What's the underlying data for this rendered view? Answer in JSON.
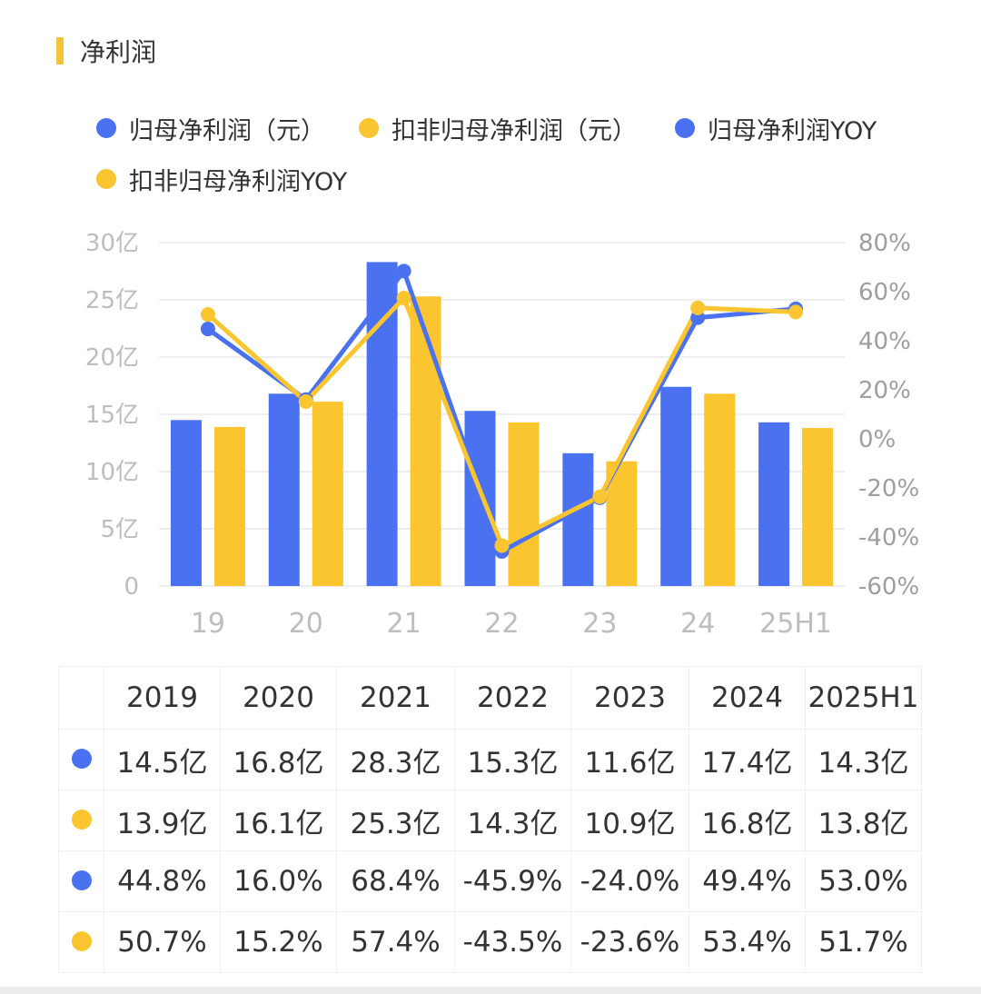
{
  "section": {
    "title": "净利润",
    "accent_color": "#F7C33A"
  },
  "colors": {
    "blue": "#4A72F0",
    "yellow": "#FAC52E",
    "grid": "#eeeeee"
  },
  "legend": [
    {
      "label": "归母净利润（元）",
      "color": "#4A72F0"
    },
    {
      "label": "扣非归母净利润（元）",
      "color": "#FAC52E"
    },
    {
      "label": "归母净利润YOY",
      "color": "#4A72F0"
    },
    {
      "label": "扣非归母净利润YOY",
      "color": "#FAC52E"
    }
  ],
  "chart_data": {
    "type": "bar",
    "categories": [
      "19",
      "20",
      "21",
      "22",
      "23",
      "24",
      "25H1"
    ],
    "y_left": {
      "ticks": [
        "0",
        "5亿",
        "10亿",
        "15亿",
        "20亿",
        "25亿",
        "30亿"
      ],
      "ylim": [
        0,
        30
      ],
      "unit": "亿"
    },
    "y_right": {
      "ticks": [
        "-60%",
        "-40%",
        "-20%",
        "0%",
        "20%",
        "40%",
        "60%",
        "80%"
      ],
      "ylim": [
        -60,
        80
      ],
      "unit": "%"
    },
    "grid": true,
    "legend_position": "top",
    "series": [
      {
        "name": "归母净利润（元）",
        "type": "bar",
        "axis": "left",
        "color": "#4A72F0",
        "values": [
          14.5,
          16.8,
          28.3,
          15.3,
          11.6,
          17.4,
          14.3
        ]
      },
      {
        "name": "扣非归母净利润（元）",
        "type": "bar",
        "axis": "left",
        "color": "#FAC52E",
        "values": [
          13.9,
          16.1,
          25.3,
          14.3,
          10.9,
          16.8,
          13.8
        ]
      },
      {
        "name": "归母净利润YOY",
        "type": "line",
        "axis": "right",
        "color": "#4A72F0",
        "values": [
          44.8,
          16.0,
          68.4,
          -45.9,
          -24.0,
          49.4,
          53.0
        ]
      },
      {
        "name": "扣非归母净利润YOY",
        "type": "line",
        "axis": "right",
        "color": "#FAC52E",
        "values": [
          50.7,
          15.2,
          57.4,
          -43.5,
          -23.6,
          53.4,
          51.7
        ]
      }
    ]
  },
  "table": {
    "headers": [
      "2019",
      "2020",
      "2021",
      "2022",
      "2023",
      "2024",
      "2025H1"
    ],
    "rows": [
      {
        "color": "#4A72F0",
        "cells": [
          "14.5亿",
          "16.8亿",
          "28.3亿",
          "15.3亿",
          "11.6亿",
          "17.4亿",
          "14.3亿"
        ]
      },
      {
        "color": "#FAC52E",
        "cells": [
          "13.9亿",
          "16.1亿",
          "25.3亿",
          "14.3亿",
          "10.9亿",
          "16.8亿",
          "13.8亿"
        ]
      },
      {
        "color": "#4A72F0",
        "cells": [
          "44.8%",
          "16.0%",
          "68.4%",
          "-45.9%",
          "-24.0%",
          "49.4%",
          "53.0%"
        ]
      },
      {
        "color": "#FAC52E",
        "cells": [
          "50.7%",
          "15.2%",
          "57.4%",
          "-43.5%",
          "-23.6%",
          "53.4%",
          "51.7%"
        ]
      }
    ]
  }
}
